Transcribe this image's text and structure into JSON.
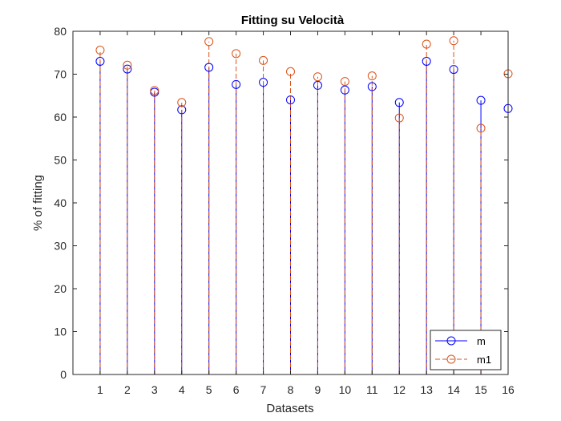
{
  "chart_data": {
    "type": "stem",
    "title": "Fitting su Velocità",
    "xlabel": "Datasets",
    "ylabel": "% of fitting",
    "x": [
      1,
      2,
      3,
      4,
      5,
      6,
      7,
      8,
      9,
      10,
      11,
      12,
      13,
      14,
      15,
      16
    ],
    "xlim": [
      0,
      16
    ],
    "ylim": [
      0,
      80
    ],
    "yticks": [
      0,
      10,
      20,
      30,
      40,
      50,
      60,
      70,
      80
    ],
    "grid": false,
    "legend_position": "bottom-right",
    "series": [
      {
        "name": "m",
        "color": "#0000ff",
        "line_style": "solid",
        "marker": "circle",
        "values": [
          73.0,
          71.2,
          65.8,
          61.7,
          71.6,
          67.6,
          68.1,
          64.0,
          67.4,
          66.3,
          67.1,
          63.4,
          73.0,
          71.1,
          63.9,
          62.0
        ]
      },
      {
        "name": "m1",
        "color": "#d95319",
        "line_style": "dashed",
        "marker": "circle",
        "values": [
          75.6,
          72.1,
          66.2,
          63.4,
          77.6,
          74.8,
          73.2,
          70.6,
          69.4,
          68.3,
          69.6,
          59.8,
          77.0,
          77.8,
          57.4,
          70.1
        ]
      }
    ]
  }
}
